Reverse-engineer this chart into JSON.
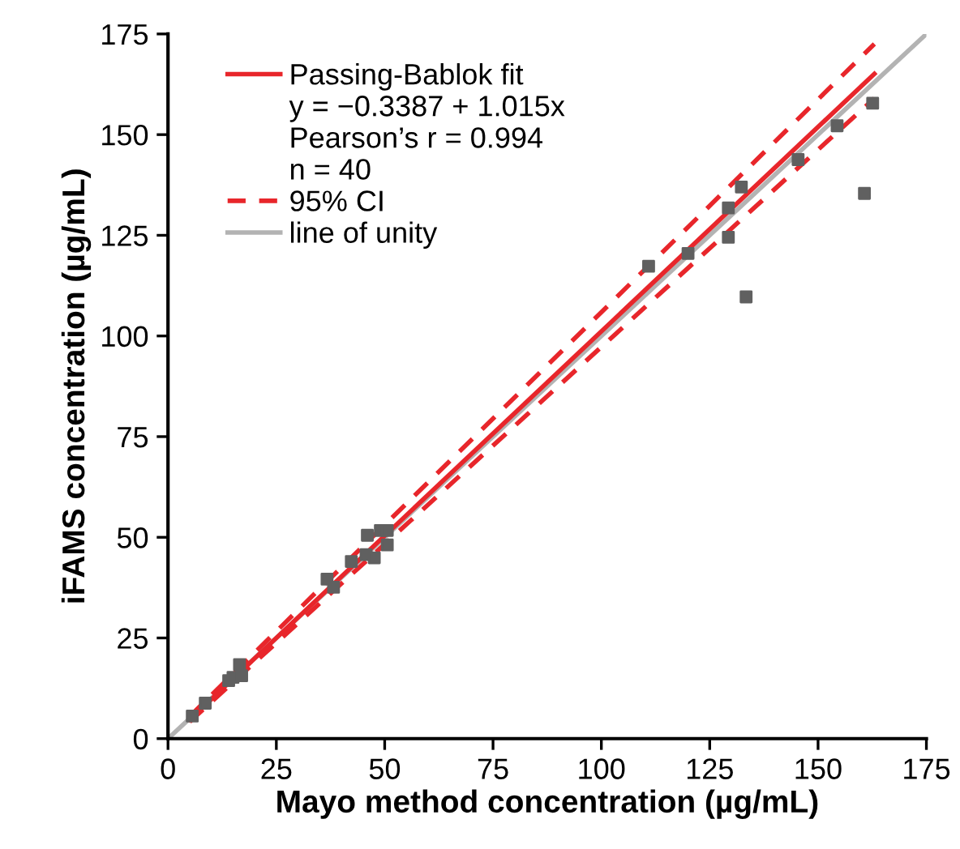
{
  "chart_data": {
    "type": "scatter",
    "xlabel": "Mayo method concentration (µg/mL)",
    "ylabel": "iFAMS concentration (µg/mL)",
    "xlim": [
      0,
      175
    ],
    "ylim": [
      0,
      175
    ],
    "xticks": [
      0,
      25,
      50,
      75,
      100,
      125,
      150,
      175
    ],
    "yticks": [
      0,
      25,
      50,
      75,
      100,
      125,
      150,
      175
    ],
    "grid": false,
    "legend": "top left",
    "annotations": [
      "y = −0.3387 + 1.015x",
      "Pearson’s r = 0.994",
      "n = 40"
    ],
    "series": [
      {
        "type": "line",
        "name": "line of unity",
        "color": "#b3b3b3",
        "line_style": "solid",
        "x": [
          0,
          175
        ],
        "values": [
          0,
          175
        ]
      },
      {
        "type": "line",
        "name": "Passing-Bablok fit",
        "color": "#e8262b",
        "line_style": "solid",
        "x": [
          5,
          163
        ],
        "values": [
          4.7,
          165.1
        ]
      },
      {
        "type": "line",
        "name": "95% CI",
        "color": "#e8262b",
        "line_style": "dashed",
        "x": [
          5,
          163
        ],
        "values": [
          5.5,
          172.5
        ]
      },
      {
        "type": "line",
        "color": "#e8262b",
        "line_style": "dashed",
        "x": [
          5,
          163
        ],
        "values": [
          4.2,
          159
        ]
      },
      {
        "color": "#606060",
        "marker": "square",
        "x": [
          5.6,
          8.6,
          14,
          15,
          16.5,
          17,
          36.7,
          38.2,
          42.3,
          45.7,
          46,
          47.6,
          49,
          50.6,
          50.6,
          110.9,
          120,
          129.3,
          129.3,
          132.3,
          133.4,
          145.4,
          154.4,
          160.7,
          162.6
        ],
        "values": [
          5.6,
          8.8,
          14.4,
          15.2,
          18.4,
          15.6,
          39.6,
          37.6,
          44,
          45.7,
          50.5,
          44.9,
          51.7,
          51.7,
          48.1,
          117.3,
          120.5,
          131.8,
          124.5,
          137,
          109.7,
          143.8,
          152.2,
          135.4,
          157.8
        ]
      }
    ]
  }
}
